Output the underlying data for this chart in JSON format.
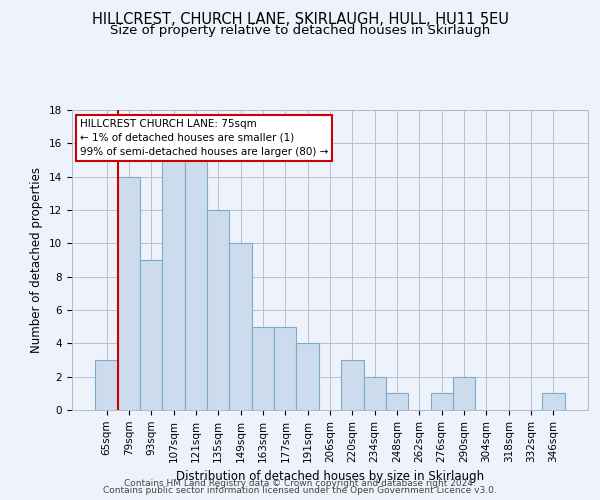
{
  "title1": "HILLCREST, CHURCH LANE, SKIRLAUGH, HULL, HU11 5EU",
  "title2": "Size of property relative to detached houses in Skirlaugh",
  "xlabel": "Distribution of detached houses by size in Skirlaugh",
  "ylabel": "Number of detached properties",
  "categories": [
    "65sqm",
    "79sqm",
    "93sqm",
    "107sqm",
    "121sqm",
    "135sqm",
    "149sqm",
    "163sqm",
    "177sqm",
    "191sqm",
    "206sqm",
    "220sqm",
    "234sqm",
    "248sqm",
    "262sqm",
    "276sqm",
    "290sqm",
    "304sqm",
    "318sqm",
    "332sqm",
    "346sqm"
  ],
  "values": [
    3,
    14,
    9,
    15,
    15,
    12,
    10,
    5,
    5,
    4,
    0,
    3,
    2,
    1,
    0,
    1,
    2,
    0,
    0,
    0,
    1
  ],
  "bar_color": "#ccdcec",
  "bar_edge_color": "#7aabcc",
  "vline_x_index": 1,
  "vline_color": "#cc0000",
  "annotation_title": "HILLCREST CHURCH LANE: 75sqm",
  "annotation_line1": "← 1% of detached houses are smaller (1)",
  "annotation_line2": "99% of semi-detached houses are larger (80) →",
  "annotation_box_color": "#ffffff",
  "annotation_box_edge": "#cc0000",
  "ylim": [
    0,
    18
  ],
  "yticks": [
    0,
    2,
    4,
    6,
    8,
    10,
    12,
    14,
    16,
    18
  ],
  "footer1": "Contains HM Land Registry data © Crown copyright and database right 2024.",
  "footer2": "Contains public sector information licensed under the Open Government Licence v3.0.",
  "background_color": "#eef2fa",
  "title1_fontsize": 10.5,
  "title2_fontsize": 9.5,
  "axis_label_fontsize": 8.5,
  "tick_fontsize": 7.5,
  "footer_fontsize": 6.5
}
